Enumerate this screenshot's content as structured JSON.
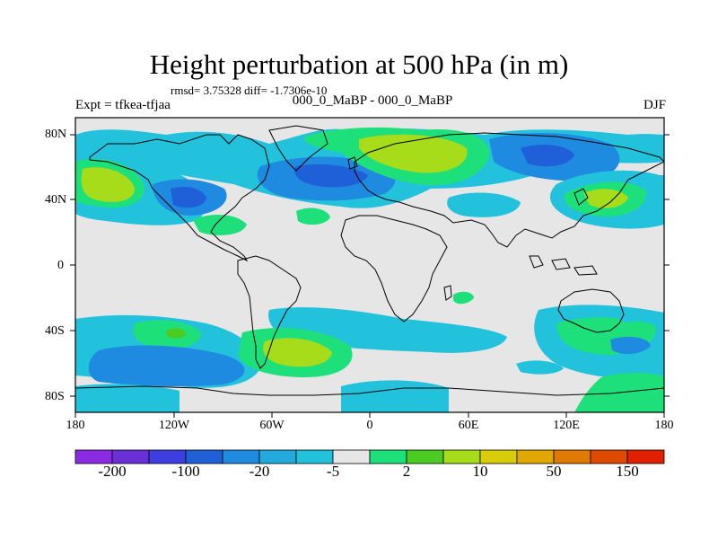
{
  "title": "Height perturbation at 500 hPa (in m)",
  "stats": "rmsd= 3.75328 diff= -1.7306e-10",
  "expt": "Expt = tfkea-tfjaa",
  "center_label": "000_0_MaBP - 000_0_MaBP",
  "season": "DJF",
  "lat_ticks": [
    "80N",
    "40N",
    "0",
    "40S",
    "80S"
  ],
  "lon_ticks": [
    "180",
    "120W",
    "60W",
    "0",
    "60E",
    "120E",
    "180"
  ],
  "colorbar": {
    "colors": [
      "#8a2be2",
      "#6a30d8",
      "#3d3de0",
      "#1f5fd8",
      "#1f8be0",
      "#22aadc",
      "#22c2dd",
      "#e6e6e6",
      "#1ee07a",
      "#4ccc22",
      "#a6dc1a",
      "#d9cc0a",
      "#e0a800",
      "#e07a00",
      "#e04a00",
      "#e02000"
    ],
    "labels": [
      "-200",
      "-100",
      "-20",
      "-5",
      "2",
      "10",
      "50",
      "150"
    ]
  }
}
